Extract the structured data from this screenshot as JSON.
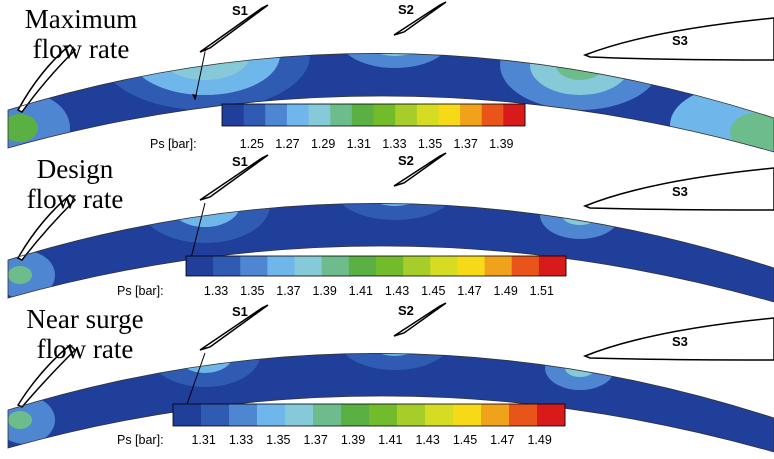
{
  "panels": [
    {
      "title_line1": "Maximum",
      "title_line2": "flow rate",
      "blade_labels": [
        "S1",
        "S2",
        "S3"
      ],
      "colorbar": {
        "label": "Ps [bar]:",
        "ticks": [
          "1.25",
          "1.27",
          "1.29",
          "1.31",
          "1.33",
          "1.35",
          "1.37",
          "1.39"
        ]
      }
    },
    {
      "title_line1": "Design",
      "title_line2": "flow rate",
      "blade_labels": [
        "S1",
        "S2",
        "S3"
      ],
      "colorbar": {
        "label": "Ps [bar]:",
        "ticks": [
          "1.33",
          "1.35",
          "1.37",
          "1.39",
          "1.41",
          "1.43",
          "1.45",
          "1.47",
          "1.49",
          "1.51"
        ]
      }
    },
    {
      "title_line1": "Near surge",
      "title_line2": "flow rate",
      "blade_labels": [
        "S1",
        "S2",
        "S3"
      ],
      "colorbar": {
        "label": "Ps [bar]:",
        "ticks": [
          "1.31",
          "1.33",
          "1.35",
          "1.37",
          "1.39",
          "1.41",
          "1.43",
          "1.45",
          "1.47",
          "1.49"
        ]
      }
    }
  ],
  "colormap": [
    "#1f3f9a",
    "#2f5bb3",
    "#4f86d2",
    "#6fb6ea",
    "#86c9d8",
    "#6dbd8c",
    "#5bb043",
    "#72bb2a",
    "#a6cd2a",
    "#d6dc22",
    "#f6d917",
    "#f1a21b",
    "#e9541a",
    "#d81a1a"
  ]
}
